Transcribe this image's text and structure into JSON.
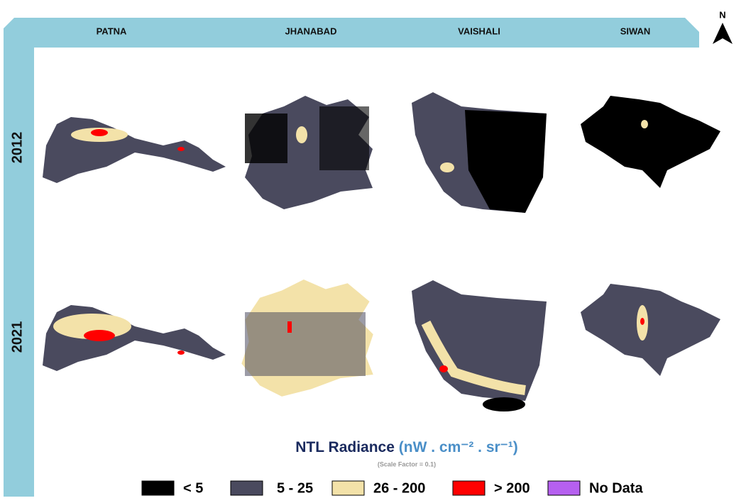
{
  "columns": [
    "PATNA",
    "JHANABAD",
    "VAISHALI",
    "SIWAN"
  ],
  "rows": [
    "2012",
    "2021"
  ],
  "north": "N",
  "legend": {
    "title": "NTL Radiance",
    "unit": "(nW . cm⁻² . sr⁻¹)",
    "note": "(Scale Factor = 0.1)",
    "items": [
      {
        "label": "< 5",
        "color": "#000000"
      },
      {
        "label": "5 - 25",
        "color": "#4a4a5e"
      },
      {
        "label": "26 - 200",
        "color": "#f3e2a9"
      },
      {
        "label": "> 200",
        "color": "#ff0000"
      },
      {
        "label": "No Data",
        "color": "#b660f0"
      }
    ]
  }
}
